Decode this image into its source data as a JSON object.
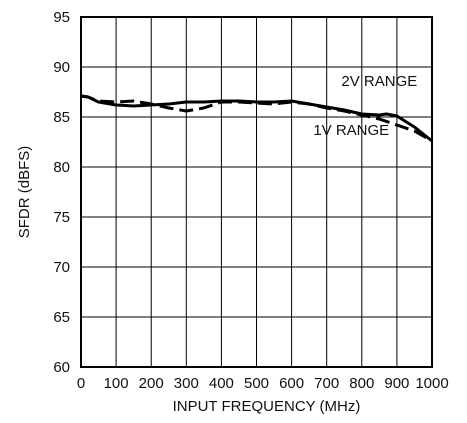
{
  "chart_data": {
    "type": "line",
    "title": "",
    "xlabel": "INPUT FREQUENCY (MHz)",
    "ylabel": "SFDR (dBFS)",
    "xlim": [
      0,
      1000
    ],
    "ylim": [
      60,
      95
    ],
    "x_ticks": [
      0,
      100,
      200,
      300,
      400,
      500,
      600,
      700,
      800,
      900,
      1000
    ],
    "x_tick_labels": [
      "0",
      "100",
      "200",
      "300",
      "400",
      "500",
      "600",
      "700",
      "800",
      "900",
      "1000"
    ],
    "y_ticks": [
      60,
      65,
      70,
      75,
      80,
      85,
      90,
      95
    ],
    "y_tick_labels": [
      "60",
      "65",
      "70",
      "75",
      "80",
      "85",
      "90",
      "95"
    ],
    "grid": true,
    "series": [
      {
        "name": "2V RANGE",
        "style": "solid",
        "x": [
          0,
          20,
          50,
          100,
          150,
          200,
          250,
          300,
          350,
          400,
          450,
          500,
          550,
          600,
          650,
          700,
          750,
          800,
          850,
          870,
          900,
          950,
          1000
        ],
        "y": [
          87.1,
          87.0,
          86.5,
          86.2,
          86.1,
          86.2,
          86.3,
          86.5,
          86.5,
          86.6,
          86.6,
          86.5,
          86.5,
          86.6,
          86.3,
          86.0,
          85.7,
          85.3,
          85.2,
          85.3,
          85.1,
          84.0,
          82.6
        ]
      },
      {
        "name": "1V RANGE",
        "style": "dashed",
        "x": [
          0,
          20,
          50,
          100,
          150,
          200,
          250,
          300,
          350,
          400,
          450,
          500,
          550,
          600,
          650,
          700,
          750,
          800,
          850,
          900,
          950,
          1000
        ],
        "y": [
          87.1,
          87.0,
          86.6,
          86.5,
          86.6,
          86.3,
          85.9,
          85.6,
          85.9,
          86.5,
          86.5,
          86.4,
          86.3,
          86.5,
          86.3,
          85.9,
          85.6,
          85.2,
          84.8,
          84.2,
          83.6,
          82.6
        ]
      }
    ],
    "annotations": [
      {
        "text": "2V RANGE",
        "x": 850,
        "y": 88.1
      },
      {
        "text": "1V RANGE",
        "x": 770,
        "y": 83.2
      }
    ]
  }
}
